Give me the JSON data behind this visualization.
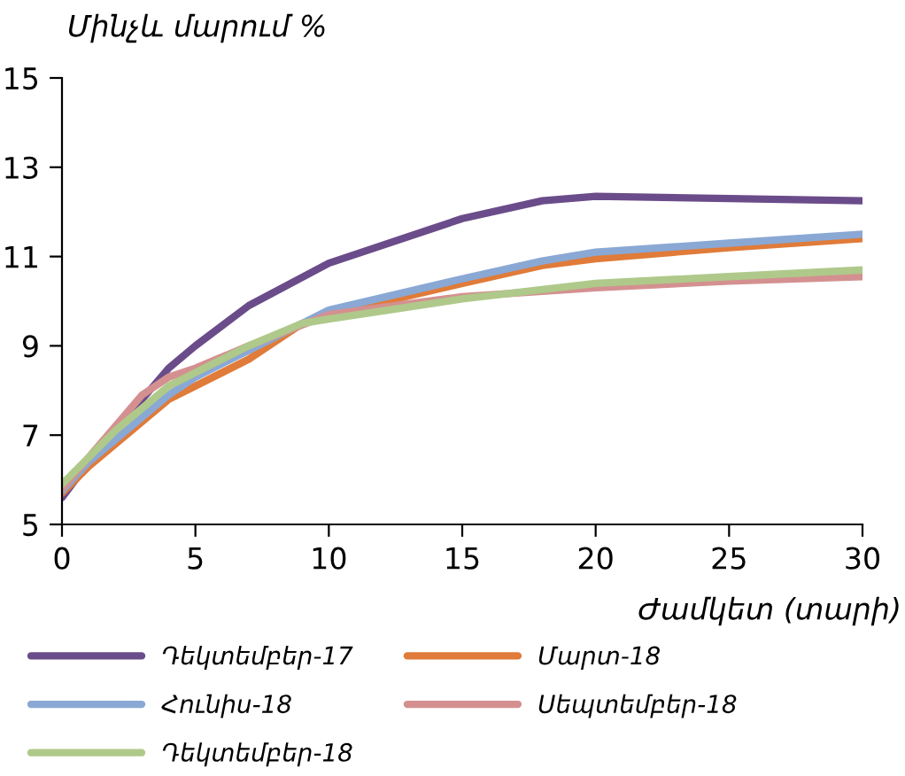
{
  "chart_data": {
    "type": "line",
    "ylabel": "Մինչև մարում %",
    "xlabel": "Ժամկետ (տարի)",
    "xlim": [
      0,
      30
    ],
    "xticks": [
      0,
      5,
      10,
      15,
      20,
      25,
      30
    ],
    "ylim": [
      5,
      15
    ],
    "yticks": [
      5,
      7,
      9,
      11,
      13,
      15
    ],
    "grid": false,
    "legend": "bottom",
    "line_style": "solid",
    "marker": "none",
    "series": [
      {
        "name": "Դեկտեմբեր-17",
        "color": "#6b4c8a",
        "x": [
          0,
          1,
          2,
          3,
          4,
          5,
          7,
          10,
          15,
          18,
          20,
          25,
          30
        ],
        "values": [
          5.6,
          6.4,
          7.1,
          7.8,
          8.5,
          9.0,
          9.9,
          10.85,
          11.85,
          12.25,
          12.35,
          12.3,
          12.25
        ]
      },
      {
        "name": "Մարտ-18",
        "color": "#e07b39",
        "x": [
          0,
          1,
          2,
          3,
          4,
          5,
          7,
          9,
          10,
          15,
          18,
          20,
          25,
          30
        ],
        "values": [
          5.7,
          6.3,
          6.8,
          7.3,
          7.8,
          8.1,
          8.7,
          9.5,
          9.7,
          10.4,
          10.8,
          10.95,
          11.2,
          11.4
        ]
      },
      {
        "name": "Հունիս-18",
        "color": "#8aa8d4",
        "x": [
          0,
          1,
          2,
          3,
          4,
          5,
          7,
          10,
          15,
          18,
          20,
          25,
          30
        ],
        "values": [
          5.75,
          6.4,
          6.9,
          7.4,
          7.9,
          8.3,
          8.9,
          9.8,
          10.5,
          10.9,
          11.1,
          11.3,
          11.5
        ]
      },
      {
        "name": "Սեպտեմբեր-18",
        "color": "#d49090",
        "x": [
          0,
          1,
          2,
          3,
          4,
          5,
          7,
          10,
          15,
          20,
          25,
          30
        ],
        "values": [
          5.8,
          6.5,
          7.2,
          7.9,
          8.3,
          8.5,
          9.0,
          9.7,
          10.1,
          10.3,
          10.45,
          10.55
        ]
      },
      {
        "name": "Դեկտեմբեր-18",
        "color": "#afc98a",
        "x": [
          0,
          1,
          2,
          3,
          4,
          5,
          7,
          9,
          10,
          15,
          20,
          25,
          30
        ],
        "values": [
          5.9,
          6.5,
          7.1,
          7.6,
          8.1,
          8.4,
          9.0,
          9.5,
          9.6,
          10.05,
          10.4,
          10.55,
          10.7
        ]
      }
    ]
  }
}
